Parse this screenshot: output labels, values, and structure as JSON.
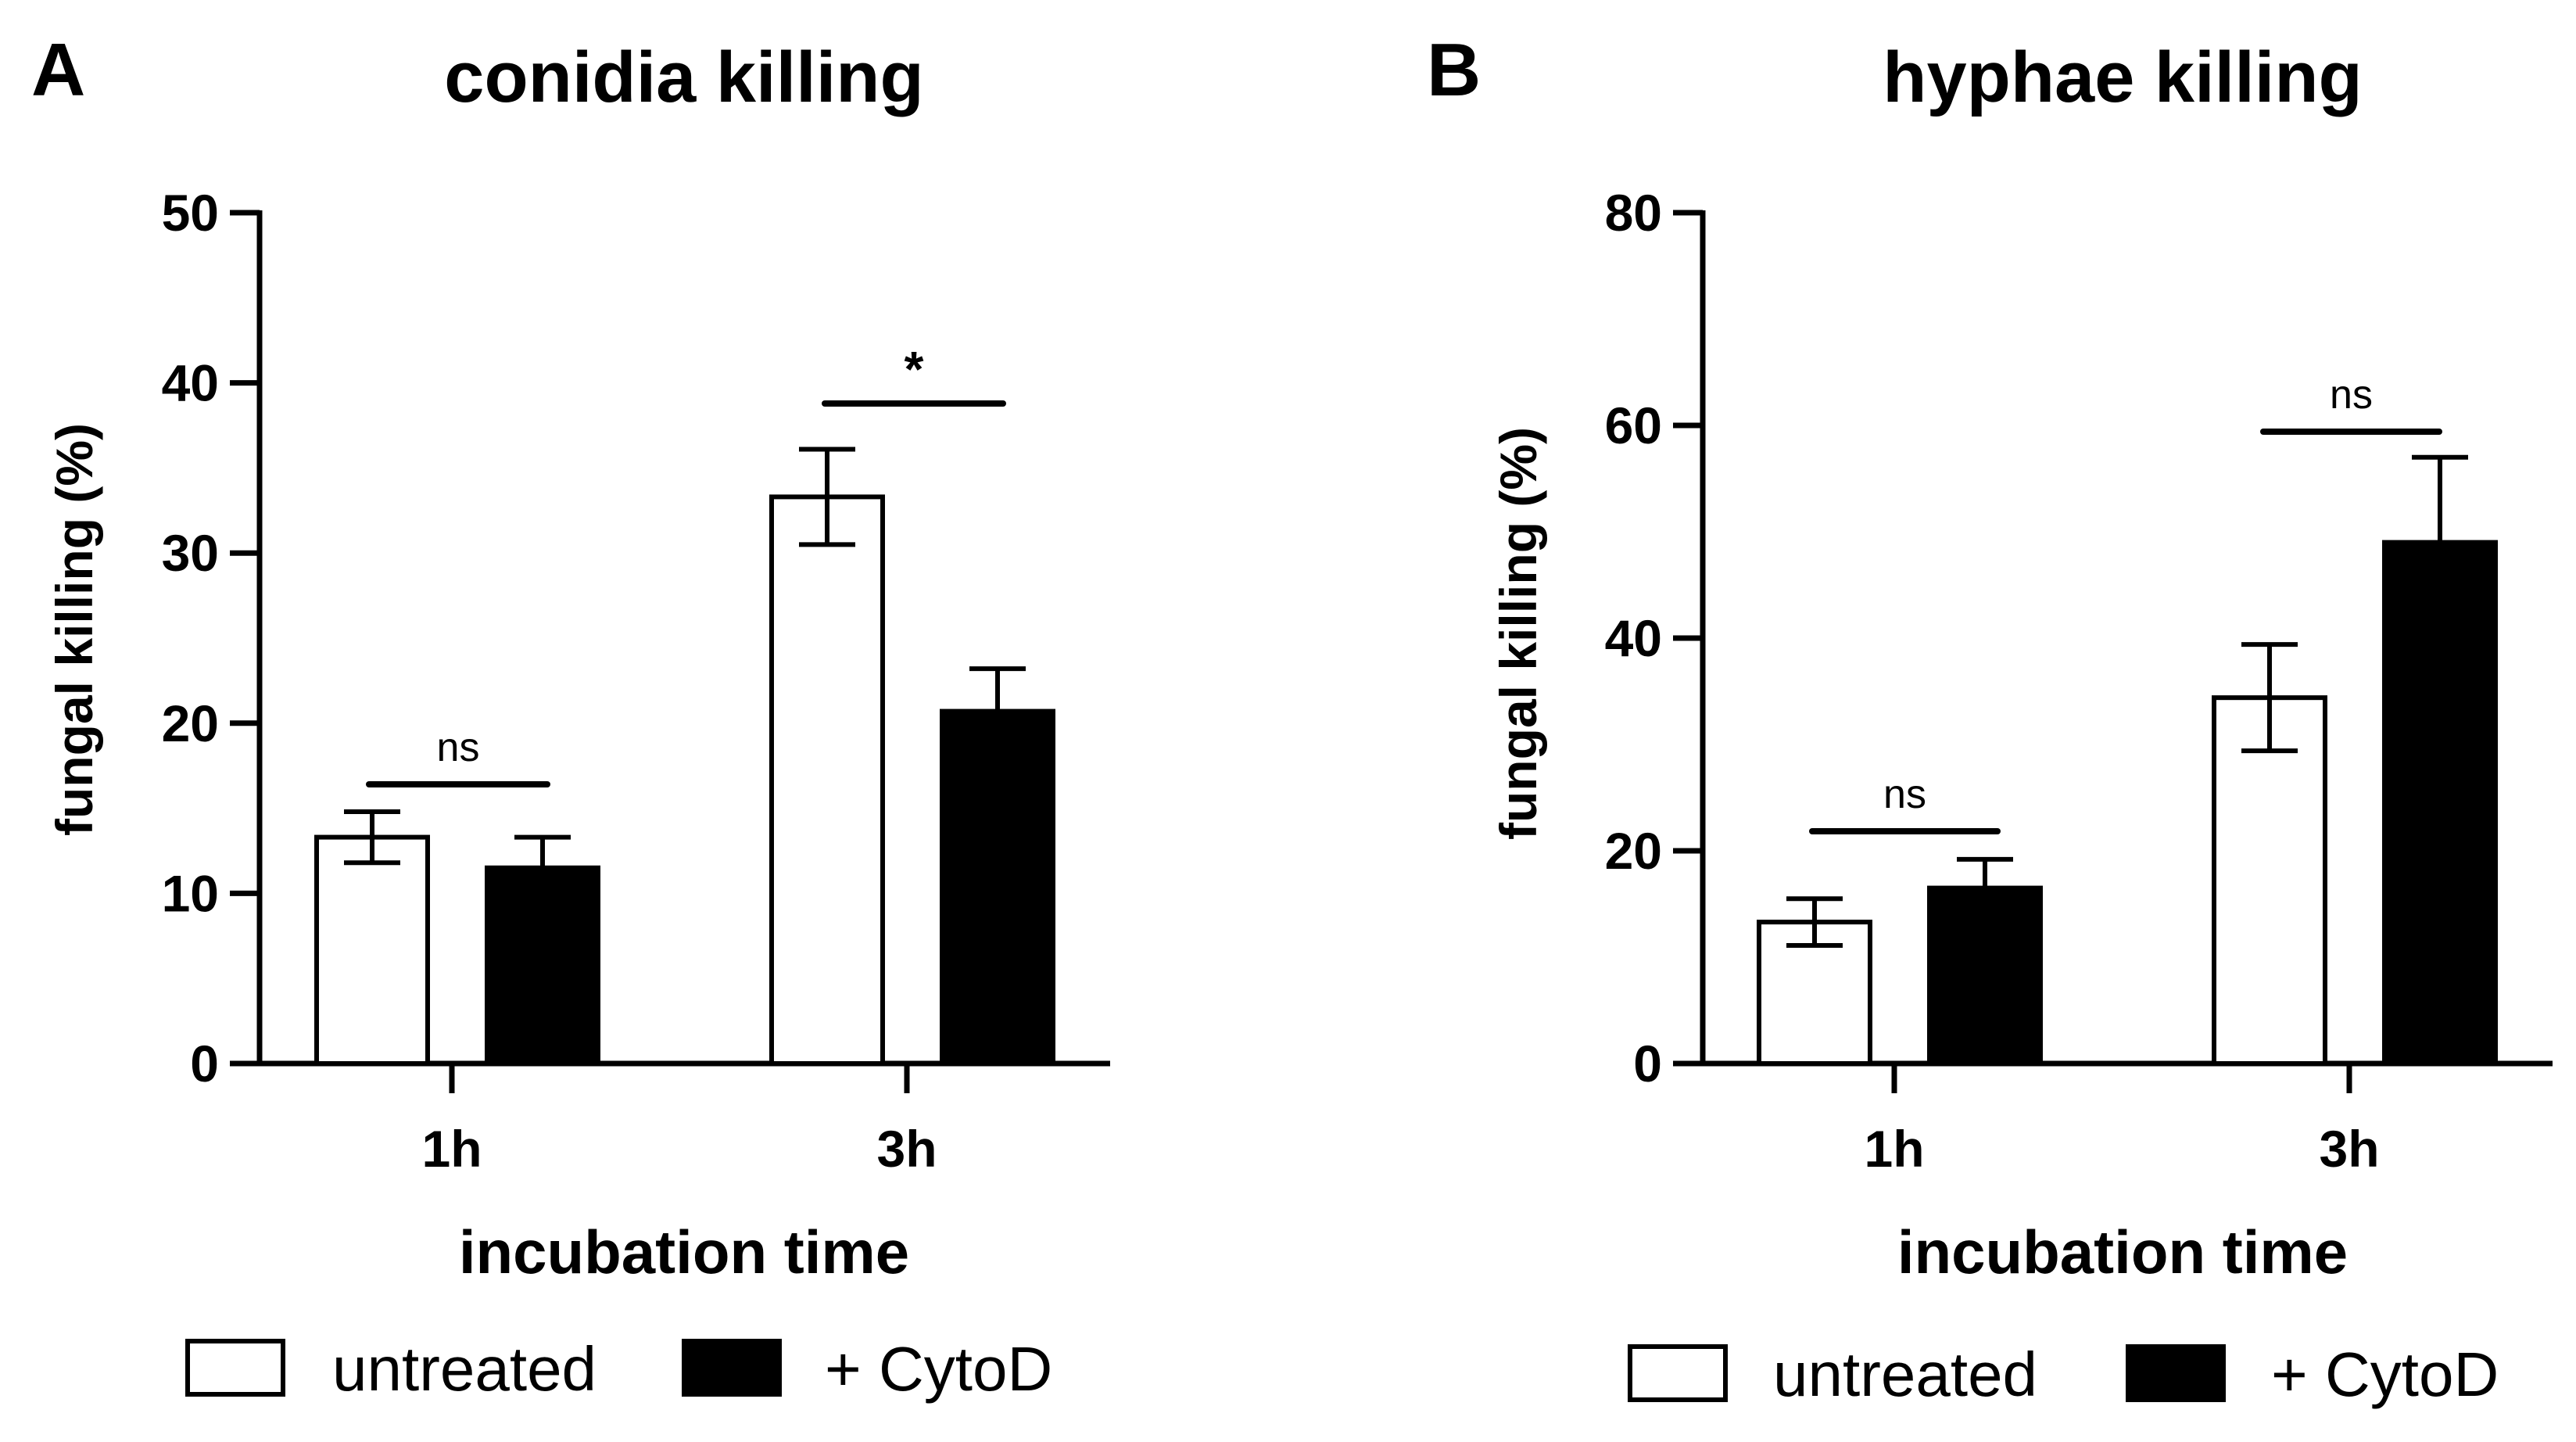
{
  "chart_data": [
    {
      "type": "bar",
      "panel": "A",
      "title": "conidia killing",
      "xlabel": "incubation time",
      "ylabel": "fungal killing (%)",
      "ylim": [
        0,
        50
      ],
      "yticks": [
        0,
        10,
        20,
        30,
        40,
        50
      ],
      "categories": [
        "1h",
        "3h"
      ],
      "series": [
        {
          "name": "untreated",
          "fill": "#ffffff",
          "values": [
            13.3,
            33.3
          ],
          "errors": [
            1.5,
            2.8
          ]
        },
        {
          "name": "+ CytoD",
          "fill": "#000000",
          "values": [
            11.5,
            20.7
          ],
          "errors": [
            1.8,
            2.5
          ]
        }
      ],
      "significance": [
        "ns",
        "*"
      ],
      "legend_position": "bottom"
    },
    {
      "type": "bar",
      "panel": "B",
      "title": "hyphae killing",
      "xlabel": "incubation time",
      "ylabel": "fungal killing (%)",
      "ylim": [
        0,
        80
      ],
      "yticks": [
        0,
        20,
        40,
        60,
        80
      ],
      "categories": [
        "1h",
        "3h"
      ],
      "series": [
        {
          "name": "untreated",
          "fill": "#ffffff",
          "values": [
            13.3,
            34.4
          ],
          "errors": [
            2.2,
            5.0
          ]
        },
        {
          "name": "+ CytoD",
          "fill": "#000000",
          "values": [
            16.5,
            49.0
          ],
          "errors": [
            2.7,
            8.0
          ]
        }
      ],
      "significance": [
        "ns",
        "ns"
      ],
      "legend_position": "bottom"
    }
  ]
}
